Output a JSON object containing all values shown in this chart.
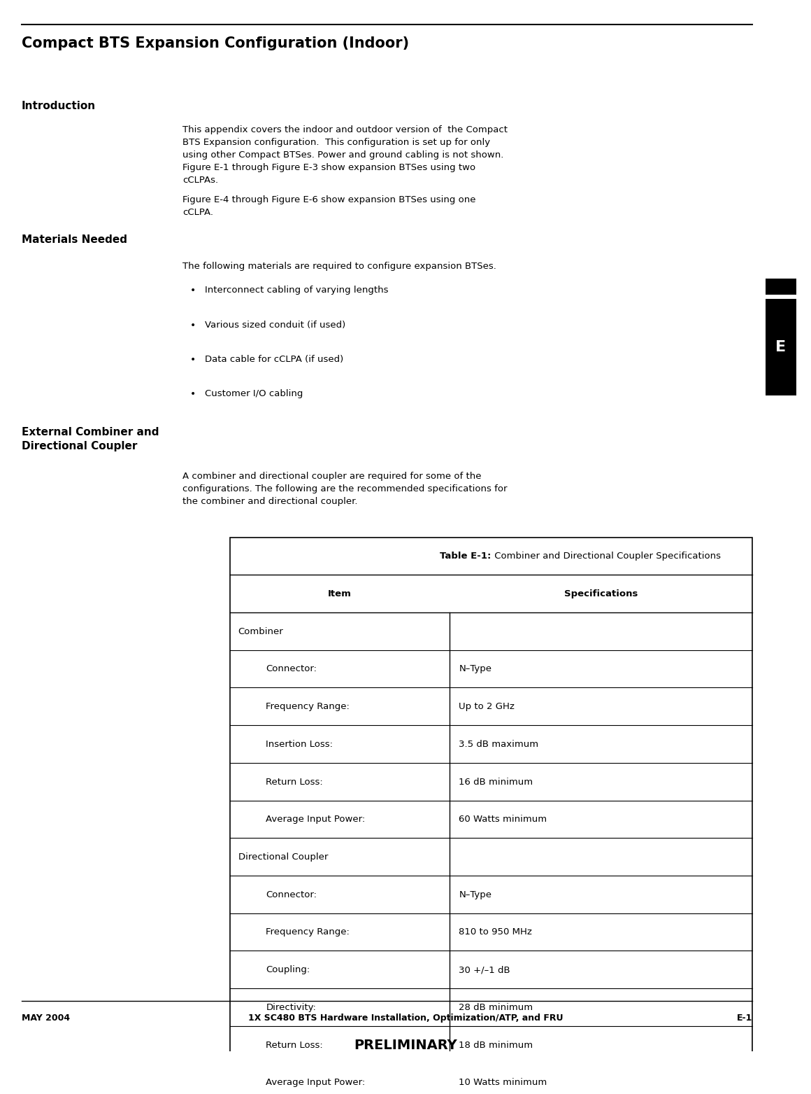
{
  "title": "Compact BTS Expansion Configuration (Indoor)",
  "intro_heading": "Introduction",
  "intro_body": "This appendix covers the indoor and outdoor version of  the Compact\nBTS Expansion configuration.  This configuration is set up for only\nusing other Compact BTSes. Power and ground cabling is not shown.\nFigure E-1 through Figure E-3 show expansion BTSes using two\ncCLPAs.",
  "intro_body2": "Figure E-4 through Figure E-6 show expansion BTSes using one\ncCLPA.",
  "materials_heading": "Materials Needed",
  "materials_body": "The following materials are required to configure expansion BTSes.",
  "materials_bullets": [
    "Interconnect cabling of varying lengths",
    "Various sized conduit (if used)",
    "Data cable for cCLPA (if used)",
    "Customer I/O cabling"
  ],
  "ext_heading": "External Combiner and\nDirectional Coupler",
  "ext_body": "A combiner and directional coupler are required for some of the\nconfigurations. The following are the recommended specifications for\nthe combiner and directional coupler.",
  "table_title_bold": "Table E-1:",
  "table_title_rest": " Combiner and Directional Coupler Specifications",
  "table_col1_header": "Item",
  "table_col2_header": "Specifications",
  "table_rows": [
    [
      "Combiner",
      ""
    ],
    [
      "    Connector:",
      "N–Type"
    ],
    [
      "    Frequency Range:",
      "Up to 2 GHz"
    ],
    [
      "    Insertion Loss:",
      "3.5 dB maximum"
    ],
    [
      "    Return Loss:",
      "16 dB minimum"
    ],
    [
      "    Average Input Power:",
      "60 Watts minimum"
    ],
    [
      "Directional Coupler",
      ""
    ],
    [
      "    Connector:",
      "N–Type"
    ],
    [
      "    Frequency Range:",
      "810 to 950 MHz"
    ],
    [
      "    Coupling:",
      "30 +/–1 dB"
    ],
    [
      "    Directivity:",
      "28 dB minimum"
    ],
    [
      "    Return Loss:",
      "18 dB minimum"
    ],
    [
      "    Average Input Power:",
      "10 Watts minimum"
    ]
  ],
  "footer_left": "MAY 2004",
  "footer_center": "1X SC480 BTS Hardware Installation, Optimization/ATP, and FRU",
  "footer_right": "E-1",
  "footer_preliminary": "PRELIMINARY",
  "sidebar_letter": "E",
  "bg_color": "#ffffff",
  "text_color": "#000000"
}
